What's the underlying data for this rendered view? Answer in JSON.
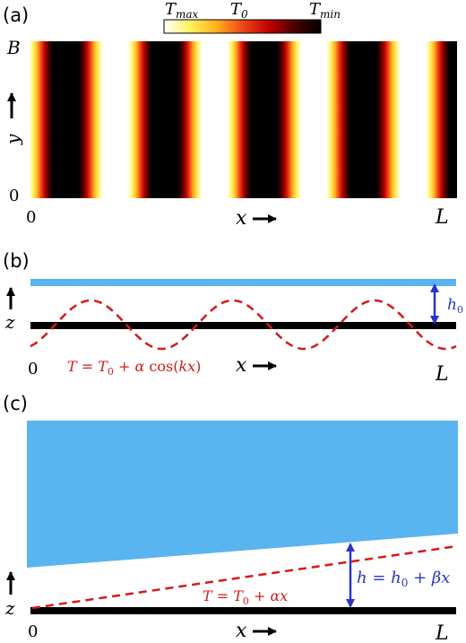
{
  "panel_a": {
    "label": "(a)",
    "colorbar": {
      "max_label": "T",
      "max_sub": "max",
      "mid_label": "T",
      "mid_sub": "0",
      "min_label": "T",
      "min_sub": "min",
      "colors": [
        "#ffffff",
        "#fff15a",
        "#ffb21d",
        "#f0461a",
        "#c20000",
        "#4a0000",
        "#000000"
      ]
    },
    "y_label": "y",
    "y_top": "B",
    "y_bottom": "0",
    "x_start": "0",
    "x_label": "x",
    "x_end": "L"
  },
  "panel_b": {
    "label": "(b)",
    "z_label": "z",
    "h_label": "h",
    "h_sub": "0",
    "x_start": "0",
    "x_label": "x",
    "x_end": "L",
    "equation": {
      "lhs": "T",
      "eq": " = ",
      "t0": "T",
      "t0_sub": "0",
      "plus": " + ",
      "alpha": "α",
      "func": " cos(",
      "arg": "kx",
      "close": ")"
    }
  },
  "panel_c": {
    "label": "(c)",
    "z_label": "z",
    "x_start": "0",
    "x_label": "x",
    "x_end": "L",
    "equation": {
      "lhs": "T",
      "eq": " = ",
      "t0": "T",
      "t0_sub": "0",
      "plus": " + ",
      "term": "αx"
    },
    "h_equation": {
      "lhs": "h",
      "eq": " = ",
      "h0": "h",
      "h0_sub": "0",
      "plus": " + ",
      "term": "βx"
    }
  },
  "colors": {
    "fluid": "#5ab4f0",
    "substrate": "#000000",
    "temperature": "#d41a1a",
    "thickness_arrow": "#2a35c8"
  }
}
